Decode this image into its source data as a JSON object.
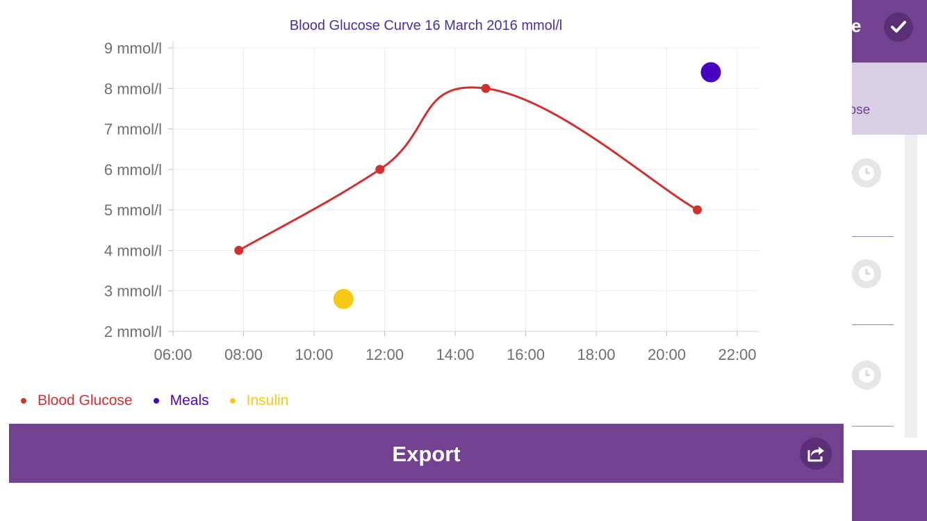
{
  "background_app": {
    "header_action_label": "ave",
    "tab_label": "cose",
    "colors": {
      "brand": "#72418f",
      "tab_bg": "#d8cfe4"
    }
  },
  "chart_data": {
    "type": "line",
    "title": "Blood Glucose Curve 16 March 2016 mmol/l",
    "xlabel": "",
    "ylabel": "",
    "x_ticks": [
      "06:00",
      "08:00",
      "10:00",
      "12:00",
      "14:00",
      "16:00",
      "18:00",
      "20:00",
      "22:00"
    ],
    "y_ticks": [
      "2 mmol/l",
      "3 mmol/l",
      "4 mmol/l",
      "5 mmol/l",
      "6 mmol/l",
      "7 mmol/l",
      "8 mmol/l",
      "9 mmol/l"
    ],
    "xlim": [
      "06:00",
      "22:30"
    ],
    "ylim": [
      2,
      9
    ],
    "grid": true,
    "legend_position": "bottom-left",
    "series": [
      {
        "name": "Blood Glucose",
        "kind": "smooth-line",
        "color": "#d32f2f",
        "points": [
          {
            "x": "07:52",
            "y": 4
          },
          {
            "x": "11:52",
            "y": 6
          },
          {
            "x": "14:52",
            "y": 8
          },
          {
            "x": "20:52",
            "y": 5
          }
        ]
      },
      {
        "name": "Meals",
        "kind": "marker",
        "color": "#4a00c0",
        "points": [
          {
            "x": "21:15",
            "y": 8.4
          }
        ]
      },
      {
        "name": "Insulin",
        "kind": "marker",
        "color": "#f7c815",
        "points": [
          {
            "x": "10:50",
            "y": 2.8
          }
        ]
      }
    ]
  },
  "export_button": {
    "label": "Export",
    "icon": "share-icon"
  }
}
